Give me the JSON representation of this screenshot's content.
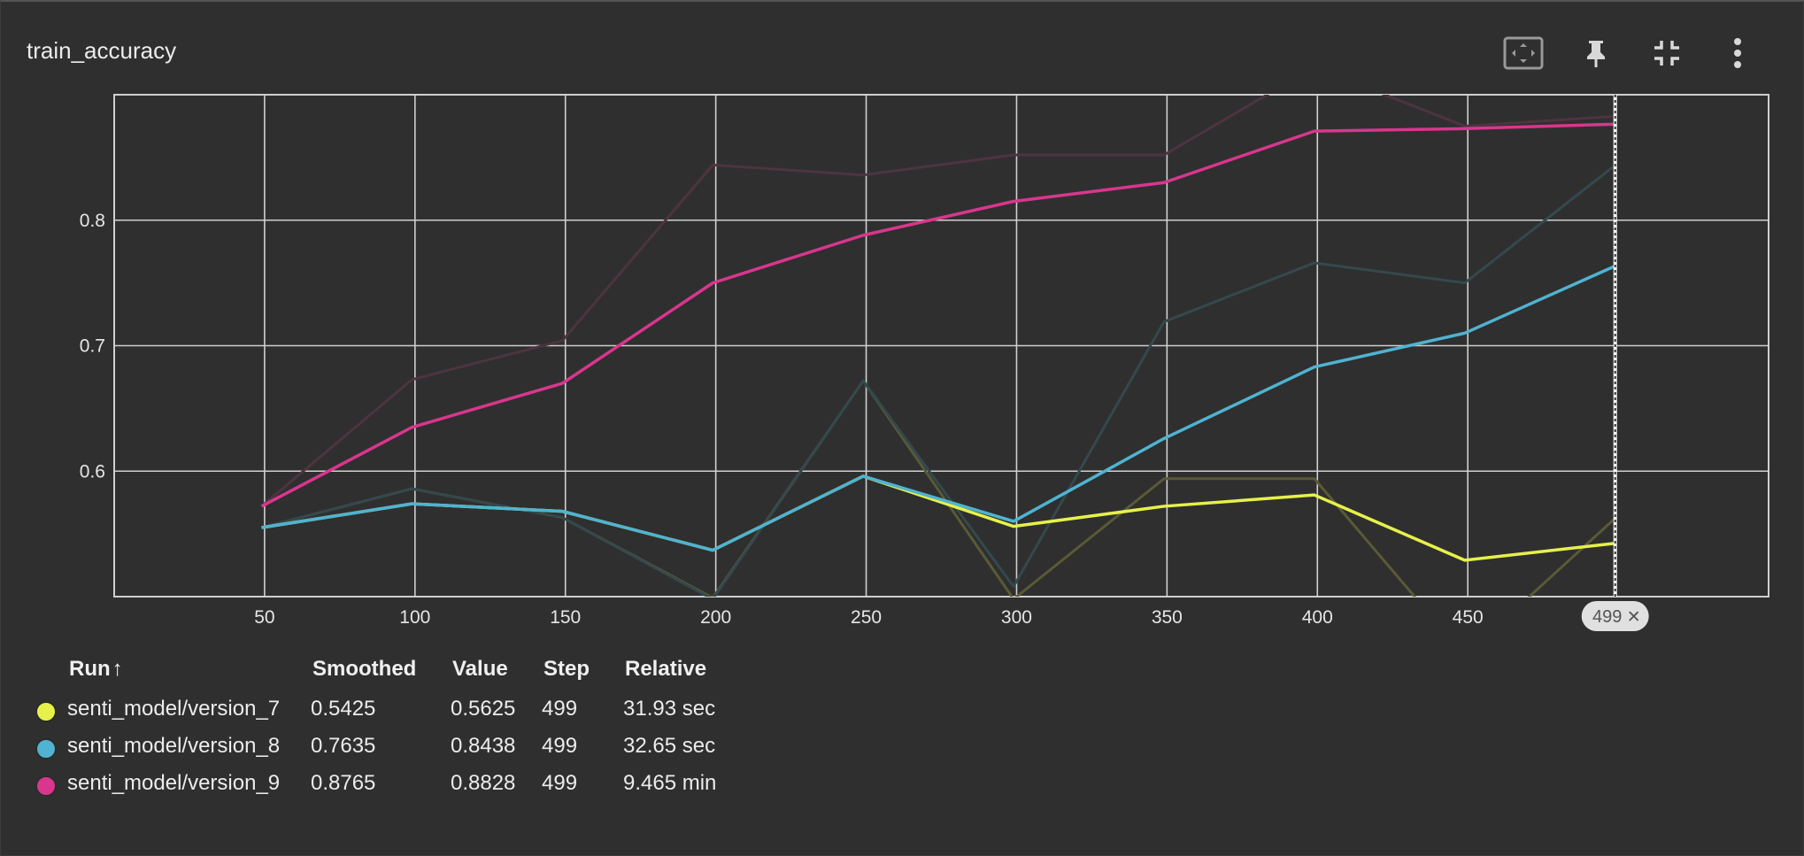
{
  "card": {
    "title": "train_accuracy",
    "tools": [
      {
        "name": "fit-domain-icon"
      },
      {
        "name": "pin-icon"
      },
      {
        "name": "collapse-icon"
      },
      {
        "name": "more-vertical-icon"
      }
    ]
  },
  "cursor": {
    "step_label": "499",
    "close_glyph": "✕"
  },
  "legend": {
    "headers": {
      "run": "Run",
      "sort_arrow": "↑",
      "smoothed": "Smoothed",
      "value": "Value",
      "step": "Step",
      "relative": "Relative"
    },
    "rows": [
      {
        "color": "#e6f14a",
        "run": "senti_model/version_7",
        "smoothed": "0.5425",
        "value": "0.5625",
        "step": "499",
        "relative": "31.93 sec"
      },
      {
        "color": "#4fb3d1",
        "run": "senti_model/version_8",
        "smoothed": "0.7635",
        "value": "0.8438",
        "step": "499",
        "relative": "32.65 sec"
      },
      {
        "color": "#d9368e",
        "run": "senti_model/version_9",
        "smoothed": "0.8765",
        "value": "0.8828",
        "step": "499",
        "relative": "9.465 min"
      }
    ]
  },
  "chart_data": {
    "type": "line",
    "title": "train_accuracy",
    "xlabel": "",
    "ylabel": "",
    "xlim": [
      0,
      550
    ],
    "ylim": [
      0.5,
      0.9
    ],
    "x_ticks": [
      50,
      100,
      150,
      200,
      250,
      300,
      350,
      400,
      450
    ],
    "y_ticks": [
      0.6,
      0.7,
      0.8
    ],
    "grid": true,
    "cursor_step": 499,
    "series": [
      {
        "name": "senti_model/version_7",
        "color": "#e6f14a",
        "raw_color": "#595a36",
        "x": [
          49,
          99,
          149,
          199,
          249,
          299,
          349,
          399,
          449,
          499
        ],
        "raw": [
          0.555,
          0.586,
          0.563,
          0.499,
          0.672,
          0.498,
          0.594,
          0.594,
          0.453,
          0.5625
        ],
        "smoothed": [
          0.555,
          0.574,
          0.568,
          0.537,
          0.596,
          0.556,
          0.572,
          0.581,
          0.529,
          0.5425
        ]
      },
      {
        "name": "senti_model/version_8",
        "color": "#4fb3d1",
        "raw_color": "#34494d",
        "x": [
          49,
          99,
          149,
          199,
          249,
          299,
          349,
          399,
          449,
          499
        ],
        "raw": [
          0.555,
          0.586,
          0.563,
          0.498,
          0.672,
          0.508,
          0.719,
          0.766,
          0.75,
          0.8438
        ],
        "smoothed": [
          0.555,
          0.574,
          0.568,
          0.537,
          0.596,
          0.56,
          0.626,
          0.683,
          0.71,
          0.7635
        ]
      },
      {
        "name": "senti_model/version_9",
        "color": "#d9368e",
        "raw_color": "#4d3440",
        "x": [
          49,
          99,
          149,
          199,
          249,
          299,
          349,
          399,
          449,
          499
        ],
        "raw": [
          0.572,
          0.673,
          0.704,
          0.844,
          0.836,
          0.852,
          0.852,
          0.922,
          0.875,
          0.8828
        ],
        "smoothed": [
          0.572,
          0.635,
          0.67,
          0.75,
          0.788,
          0.815,
          0.83,
          0.871,
          0.873,
          0.8765
        ]
      }
    ]
  }
}
